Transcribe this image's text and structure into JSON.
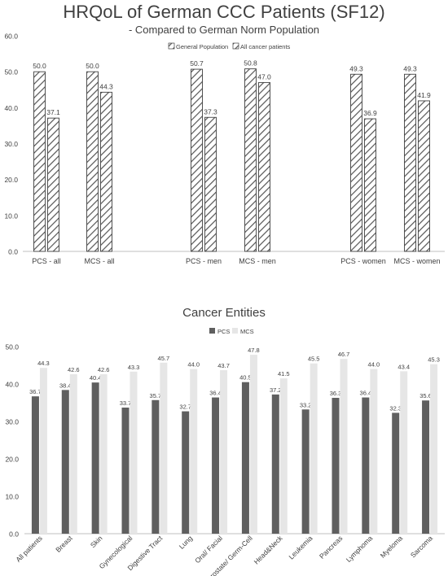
{
  "chart_data": [
    {
      "type": "bar",
      "title": "HRQoL of German CCC Patients (SF12)",
      "subtitle": "- Compared to German Norm Population",
      "categories": [
        "PCS - all",
        "MCS - all",
        "PCS - men",
        "MCS - men",
        "PCS - women",
        "MCS - women"
      ],
      "series": [
        {
          "name": "General Population",
          "values": [
            50.0,
            50.0,
            50.7,
            50.8,
            49.3,
            49.3
          ]
        },
        {
          "name": "All cancer patients",
          "values": [
            37.1,
            44.3,
            37.3,
            47.0,
            36.9,
            41.9
          ]
        }
      ],
      "ylim": [
        0,
        60
      ],
      "yticks": [
        "0.0",
        "10.0",
        "20.0",
        "30.0",
        "40.0",
        "50.0",
        "60.0"
      ],
      "legend": "top-center",
      "pattern": "diagonal-hatch",
      "grid": false
    },
    {
      "type": "bar",
      "title": "Cancer Entities",
      "categories": [
        "All patients",
        "Breast",
        "Skin",
        "Gynecological",
        "Digestive Tract",
        "Lung",
        "Oral/ Facial",
        "Prostate/ Germ-Cell",
        "Head&Neck",
        "Leukemia",
        "Pancreas",
        "Lymphoma",
        "Myeloma",
        "Sarcoma"
      ],
      "series": [
        {
          "name": "PCS",
          "values": [
            36.7,
            38.4,
            40.4,
            33.7,
            35.7,
            32.7,
            36.4,
            40.5,
            37.2,
            33.2,
            36.3,
            36.4,
            32.3,
            35.6
          ],
          "color": "#5f5f5f"
        },
        {
          "name": "MCS",
          "values": [
            44.3,
            42.6,
            42.6,
            43.3,
            45.7,
            44.0,
            43.7,
            47.8,
            41.5,
            45.5,
            46.7,
            44.0,
            43.4,
            45.3
          ],
          "color": "#e6e6e6"
        }
      ],
      "ylim": [
        0,
        50
      ],
      "yticks": [
        "0.0",
        "10.0",
        "20.0",
        "30.0",
        "40.0",
        "50.0"
      ],
      "legend": "top-center",
      "grid": false
    }
  ]
}
